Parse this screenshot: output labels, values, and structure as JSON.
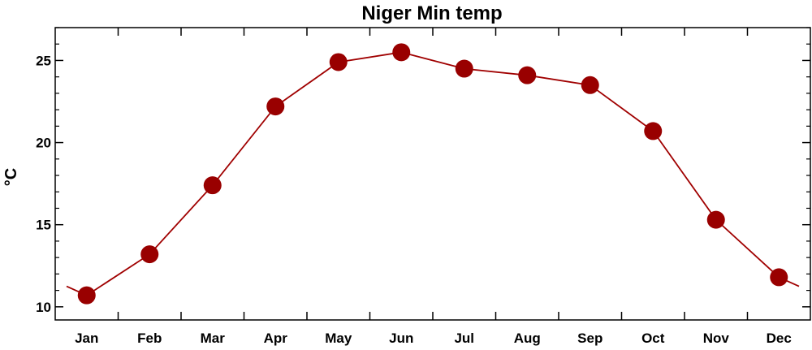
{
  "chart_data": {
    "type": "line",
    "title": "Niger Min temp",
    "ylabel": "°C",
    "xlabel": "",
    "categories": [
      "Jan",
      "Feb",
      "Mar",
      "Apr",
      "May",
      "Jun",
      "Jul",
      "Aug",
      "Sep",
      "Oct",
      "Nov",
      "Dec"
    ],
    "values": [
      10.7,
      13.2,
      17.4,
      22.2,
      24.9,
      25.5,
      24.5,
      24.1,
      23.5,
      20.7,
      15.3,
      11.8
    ],
    "ylim": [
      9.2,
      27.0
    ],
    "yticks": [
      10,
      15,
      20,
      25
    ],
    "ytick_labels": [
      "10",
      "15",
      "20",
      "25"
    ],
    "wrap_edges": true,
    "grid": false,
    "series_color": "#a00000",
    "marker_color": "#990000"
  }
}
